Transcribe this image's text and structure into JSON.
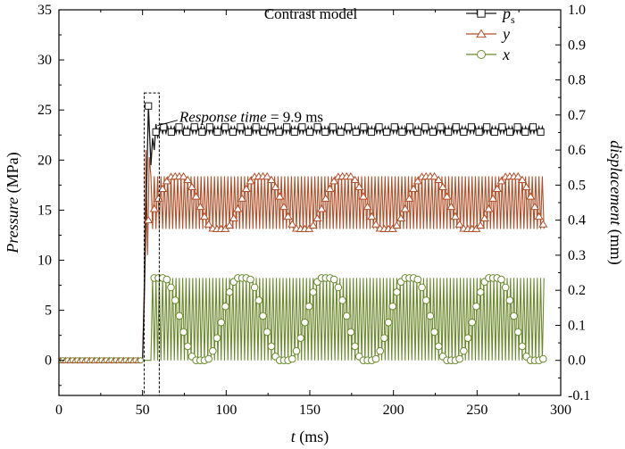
{
  "chart_data": {
    "type": "line",
    "title": "Contrast model",
    "xlabel": {
      "italic": "t",
      "unit": " (ms)"
    },
    "ylabel_left": {
      "italic": "Pressure",
      "unit": " (MPa)"
    },
    "ylabel_right": {
      "italic": "displacement",
      "unit": " (mm)"
    },
    "xlim": [
      0,
      300
    ],
    "ylim_left": [
      -3.5,
      35
    ],
    "ylim_right": [
      -0.1,
      1.0
    ],
    "xticks": [
      "0",
      "50",
      "100",
      "150",
      "200",
      "250",
      "300"
    ],
    "yticks_left": [
      "0",
      "5",
      "10",
      "15",
      "20",
      "25",
      "30",
      "35"
    ],
    "yticks_right": [
      "-0.1",
      "0.0",
      "0.1",
      "0.2",
      "0.3",
      "0.4",
      "0.5",
      "0.6",
      "0.7",
      "0.8",
      "0.9",
      "1.0"
    ],
    "legend": {
      "placement": "top-right",
      "entries": [
        {
          "key": "ps",
          "main": "p",
          "sub": "s",
          "marker": "square",
          "color": "#1a1a1a"
        },
        {
          "key": "y",
          "main": "y",
          "sub": "",
          "marker": "triangle",
          "color": "#b0502a"
        },
        {
          "key": "x",
          "main": "x",
          "sub": "",
          "marker": "circle",
          "color": "#6b8a2e"
        }
      ]
    },
    "series": [
      {
        "name": "ps",
        "axis": "left",
        "color": "#1a1a1a",
        "marker": "square",
        "initial_value": 0,
        "step_time": 50,
        "peak": [
          53.5,
          25.4
        ],
        "steady_value": 23.0,
        "steady_amplitude": 0.3,
        "t_end": 290
      },
      {
        "name": "y",
        "axis": "right",
        "color": "#b0502a",
        "marker": "triangle",
        "initial_value": 0.0,
        "band": [
          0.375,
          0.525
        ],
        "envelope_period": 50,
        "t_start": 50,
        "t_end": 290
      },
      {
        "name": "x",
        "axis": "right",
        "color": "#6b8a2e",
        "marker": "circle",
        "initial_value": 0.0,
        "band": [
          0.0,
          0.235
        ],
        "envelope_period": 50,
        "t_start": 55,
        "t_end": 290
      }
    ],
    "annotations": [
      {
        "text_italic": "Response time",
        "text_rest": " = 9.9 ms",
        "x": 72,
        "y": 23.8
      }
    ],
    "highlight_box": {
      "x0": 51,
      "x1": 60,
      "y0": -3.5,
      "y1": 26.7
    },
    "grid": false
  }
}
